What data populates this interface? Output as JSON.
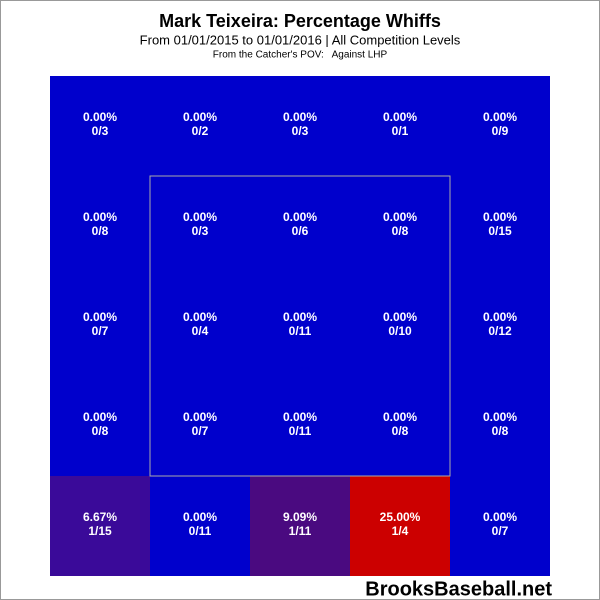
{
  "chart_data": {
    "type": "heatmap",
    "title": "Mark Teixeira: Percentage Whiffs",
    "subtitle": "From 01/01/2015 to 01/01/2016 | All Competition Levels",
    "note": "From the Catcher's POV:   Against LHP",
    "watermark": "BrooksBaseball.net",
    "values": [
      [
        0,
        0,
        0,
        0,
        0
      ],
      [
        0,
        0,
        0,
        0,
        0
      ],
      [
        0,
        0,
        0,
        0,
        0
      ],
      [
        0,
        0,
        0,
        0,
        0
      ],
      [
        6.67,
        0,
        9.09,
        25,
        0
      ]
    ],
    "value_labels": [
      [
        "0.00%",
        "0.00%",
        "0.00%",
        "0.00%",
        "0.00%"
      ],
      [
        "0.00%",
        "0.00%",
        "0.00%",
        "0.00%",
        "0.00%"
      ],
      [
        "0.00%",
        "0.00%",
        "0.00%",
        "0.00%",
        "0.00%"
      ],
      [
        "0.00%",
        "0.00%",
        "0.00%",
        "0.00%",
        "0.00%"
      ],
      [
        "6.67%",
        "0.00%",
        "9.09%",
        "25.00%",
        "0.00%"
      ]
    ],
    "counts": [
      [
        "0/3",
        "0/2",
        "0/3",
        "0/1",
        "0/9"
      ],
      [
        "0/8",
        "0/3",
        "0/6",
        "0/8",
        "0/15"
      ],
      [
        "0/7",
        "0/4",
        "0/11",
        "0/10",
        "0/12"
      ],
      [
        "0/8",
        "0/7",
        "0/11",
        "0/8",
        "0/8"
      ],
      [
        "1/15",
        "0/11",
        "1/11",
        "1/4",
        "0/7"
      ]
    ],
    "colors": [
      [
        "#0000cc",
        "#0000cc",
        "#0000cc",
        "#0000cc",
        "#0000cc"
      ],
      [
        "#0000cc",
        "#0000cc",
        "#0000cc",
        "#0000cc",
        "#0000cc"
      ],
      [
        "#0000cc",
        "#0000cc",
        "#0000cc",
        "#0000cc",
        "#0000cc"
      ],
      [
        "#0000cc",
        "#0000cc",
        "#0000cc",
        "#0000cc",
        "#0000cc"
      ],
      [
        "#3a0a99",
        "#0000cc",
        "#4a0a80",
        "#cc0000",
        "#0000cc"
      ]
    ]
  }
}
